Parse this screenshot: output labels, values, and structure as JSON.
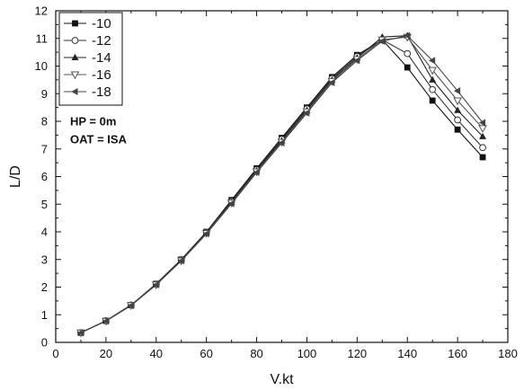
{
  "chart_data": {
    "type": "line",
    "xlabel": "V.kt",
    "ylabel": "L/D",
    "xlim": [
      0,
      180
    ],
    "ylim": [
      0,
      12
    ],
    "x_ticks": [
      0,
      20,
      40,
      60,
      80,
      100,
      120,
      140,
      160,
      180
    ],
    "y_ticks": [
      0,
      1,
      2,
      3,
      4,
      5,
      6,
      7,
      8,
      9,
      10,
      11,
      12
    ],
    "grid": false,
    "legend_position": "top-left",
    "annotations": [
      "HP = 0m",
      "OAT = ISA"
    ],
    "x": [
      10,
      20,
      30,
      40,
      50,
      60,
      70,
      80,
      90,
      100,
      110,
      120,
      130,
      140,
      150,
      160,
      170
    ],
    "series": [
      {
        "name": "-10",
        "marker": "filled-square",
        "color": "#111111",
        "values": [
          0.35,
          0.78,
          1.35,
          2.12,
          3.0,
          4.0,
          5.15,
          6.3,
          7.4,
          8.5,
          9.6,
          10.4,
          10.95,
          9.95,
          8.75,
          7.7,
          6.7
        ]
      },
      {
        "name": "-12",
        "marker": "open-circle",
        "color": "#333333",
        "values": [
          0.35,
          0.78,
          1.35,
          2.1,
          2.98,
          3.98,
          5.1,
          6.25,
          7.35,
          8.45,
          9.55,
          10.35,
          10.95,
          10.45,
          9.15,
          8.05,
          7.05
        ]
      },
      {
        "name": "-14",
        "marker": "filled-triangle-up",
        "color": "#222222",
        "values": [
          0.35,
          0.78,
          1.35,
          2.1,
          2.97,
          3.96,
          5.07,
          6.22,
          7.3,
          8.4,
          9.5,
          10.3,
          11.05,
          11.1,
          9.5,
          8.4,
          7.45
        ]
      },
      {
        "name": "-16",
        "marker": "open-triangle-down",
        "color": "#555555",
        "values": [
          0.35,
          0.77,
          1.34,
          2.09,
          2.96,
          3.95,
          5.05,
          6.18,
          7.25,
          8.35,
          9.45,
          10.25,
          10.95,
          11.05,
          9.85,
          8.75,
          7.75
        ]
      },
      {
        "name": "-18",
        "marker": "filled-triangle-left",
        "color": "#444444",
        "values": [
          0.35,
          0.77,
          1.33,
          2.08,
          2.95,
          3.93,
          5.02,
          6.15,
          7.22,
          8.3,
          9.4,
          10.2,
          10.9,
          11.1,
          10.2,
          9.1,
          7.95
        ]
      }
    ]
  }
}
